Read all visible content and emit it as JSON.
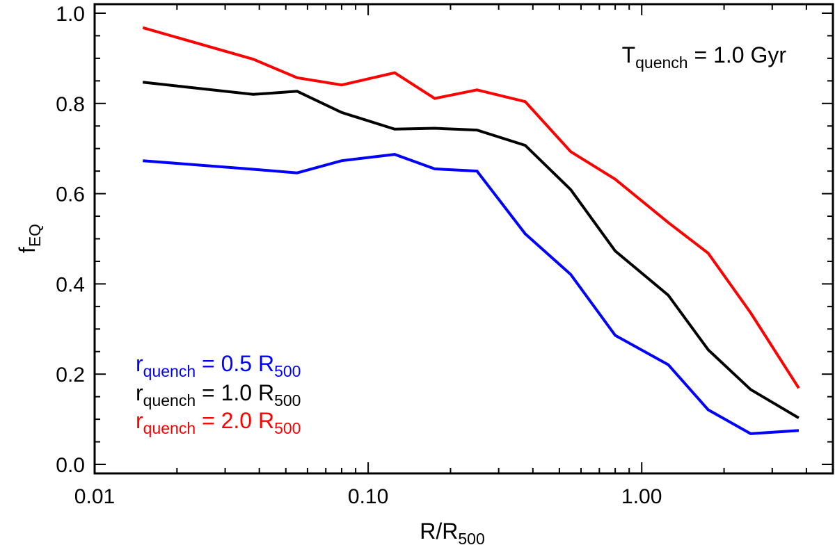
{
  "chart_data": {
    "type": "line",
    "xscale": "log",
    "xlim": [
      0.01,
      5.0
    ],
    "ylim": [
      -0.02,
      1.02
    ],
    "xlabel": {
      "main": "R/R",
      "sub": "500"
    },
    "ylabel": {
      "main": "f",
      "sub": "EQ"
    },
    "xticks": [
      {
        "value": 0.01,
        "label": "0.01"
      },
      {
        "value": 0.1,
        "label": "0.10"
      },
      {
        "value": 1.0,
        "label": "1.00"
      }
    ],
    "yticks": [
      {
        "value": 0.0,
        "label": "0.0"
      },
      {
        "value": 0.2,
        "label": "0.2"
      },
      {
        "value": 0.4,
        "label": "0.4"
      },
      {
        "value": 0.6,
        "label": "0.6"
      },
      {
        "value": 0.8,
        "label": "0.8"
      },
      {
        "value": 1.0,
        "label": "1.0"
      }
    ],
    "annotation": {
      "pre": "T",
      "sub": "quench",
      "post": " = 1.0 Gyr"
    },
    "x": [
      0.015,
      0.038,
      0.055,
      0.08,
      0.125,
      0.175,
      0.25,
      0.375,
      0.55,
      0.8,
      1.25,
      1.75,
      2.5,
      3.75
    ],
    "series": [
      {
        "name": "blue",
        "label": {
          "pre": "r",
          "sub": "quench",
          "mid": " = 0.5 R",
          "sub2": "500"
        },
        "color": "#0000ff",
        "values": [
          0.673,
          0.654,
          0.646,
          0.673,
          0.687,
          0.655,
          0.65,
          0.511,
          0.421,
          0.286,
          0.221,
          0.121,
          0.068,
          0.075
        ]
      },
      {
        "name": "black",
        "label": {
          "pre": "r",
          "sub": "quench",
          "mid": " = 1.0 R",
          "sub2": "500"
        },
        "color": "#000000",
        "values": [
          0.847,
          0.82,
          0.827,
          0.78,
          0.743,
          0.745,
          0.741,
          0.707,
          0.609,
          0.473,
          0.375,
          0.254,
          0.166,
          0.103
        ]
      },
      {
        "name": "red",
        "label": {
          "pre": "r",
          "sub": "quench",
          "mid": " = 2.0 R",
          "sub2": "500"
        },
        "color": "#ff0000",
        "values": [
          0.968,
          0.898,
          0.857,
          0.841,
          0.868,
          0.811,
          0.83,
          0.804,
          0.693,
          0.632,
          0.536,
          0.468,
          0.336,
          0.169
        ]
      }
    ]
  }
}
